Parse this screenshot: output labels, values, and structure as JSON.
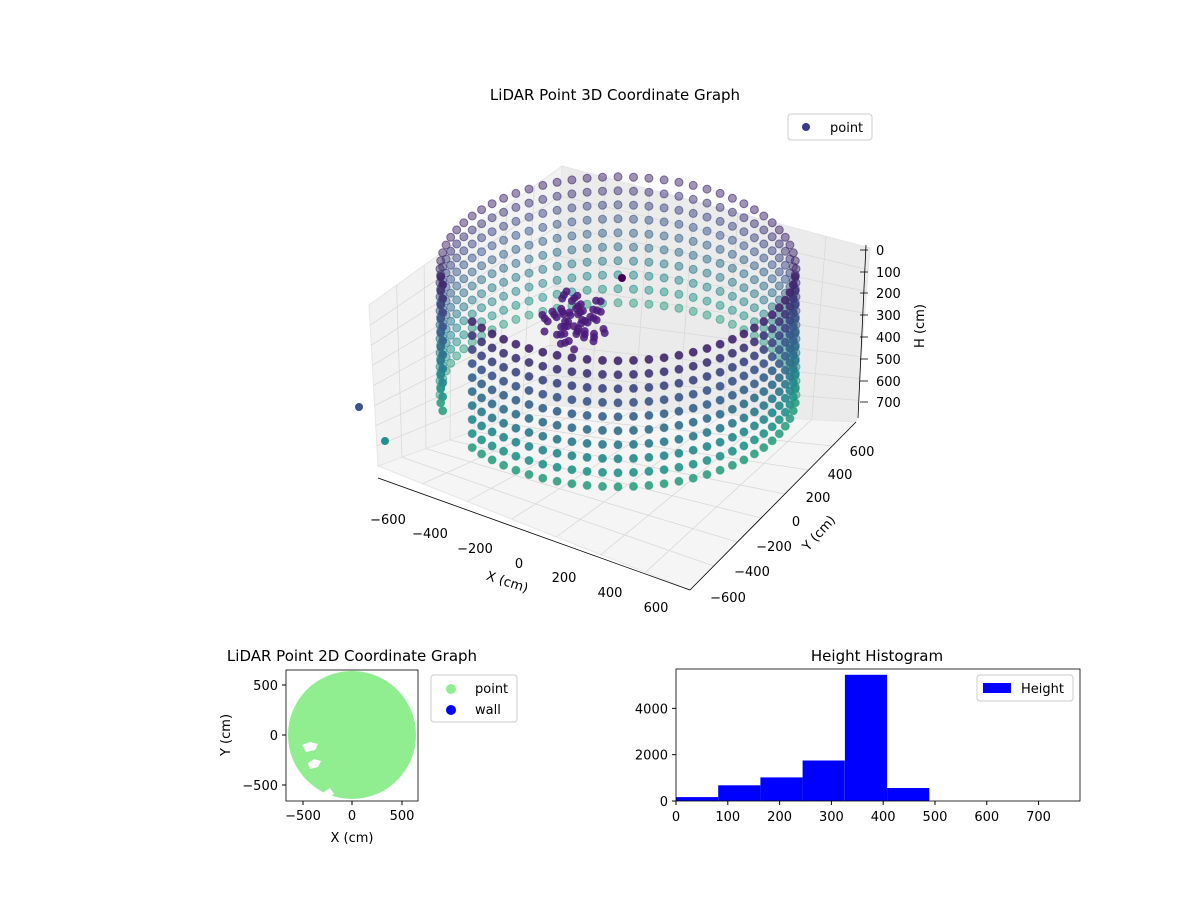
{
  "colors": {
    "point_3d": "#3b3a87",
    "point_2d": "#90ee90",
    "wall": "#0000ff",
    "histogram": "#0000ff"
  },
  "chart_data": [
    {
      "type": "scatter",
      "projection": "3d",
      "title": "LiDAR Point 3D Coordinate Graph",
      "xlabel": "X (cm)",
      "ylabel": "Y (cm)",
      "zlabel": "H (cm)",
      "xlim": [
        -650,
        650
      ],
      "ylim": [
        -650,
        650
      ],
      "zlim": [
        0,
        750
      ],
      "z_inverted": true,
      "x_ticks": [
        "−600",
        "−400",
        "−200",
        "0",
        "200",
        "400",
        "600"
      ],
      "y_ticks": [
        "−600",
        "−400",
        "−200",
        "0",
        "200",
        "400",
        "600"
      ],
      "z_ticks": [
        "0",
        "100",
        "200",
        "300",
        "400",
        "500",
        "600",
        "700"
      ],
      "legend": {
        "position": "top-right",
        "entries": [
          "point"
        ]
      },
      "grid": true,
      "colormap": "viridis (colored by height)",
      "description": "Ring of points at radius ~620 cm forming a cylindrical wall between heights ~100 and ~600 cm, with a dense cluster near the center"
    },
    {
      "type": "scatter",
      "title": "LiDAR Point 2D Coordinate Graph",
      "xlabel": "X (cm)",
      "ylabel": "Y (cm)",
      "xlim": [
        -650,
        650
      ],
      "ylim": [
        -650,
        650
      ],
      "x_ticks": [
        "−500",
        "0",
        "500"
      ],
      "y_ticks": [
        "−500",
        "0",
        "500"
      ],
      "legend": {
        "position": "outside-right",
        "entries": [
          "point",
          "wall"
        ]
      },
      "series": [
        {
          "name": "point",
          "color": "#90ee90",
          "shape": "filled disk radius ~640"
        },
        {
          "name": "wall",
          "color": "#0000ff"
        }
      ]
    },
    {
      "type": "bar",
      "subtype": "histogram",
      "title": "Height Histogram",
      "xlim": [
        0,
        780
      ],
      "ylim": [
        0,
        5700
      ],
      "x_ticks": [
        "0",
        "100",
        "200",
        "300",
        "400",
        "500",
        "600",
        "700"
      ],
      "y_ticks": [
        "0",
        "2000",
        "4000"
      ],
      "legend": {
        "position": "top-right",
        "entries": [
          "Height"
        ]
      },
      "bin_edges": [
        0,
        81.5,
        163,
        244.5,
        326,
        407.5,
        489
      ],
      "values": [
        170,
        680,
        1020,
        1750,
        5450,
        560
      ]
    }
  ]
}
